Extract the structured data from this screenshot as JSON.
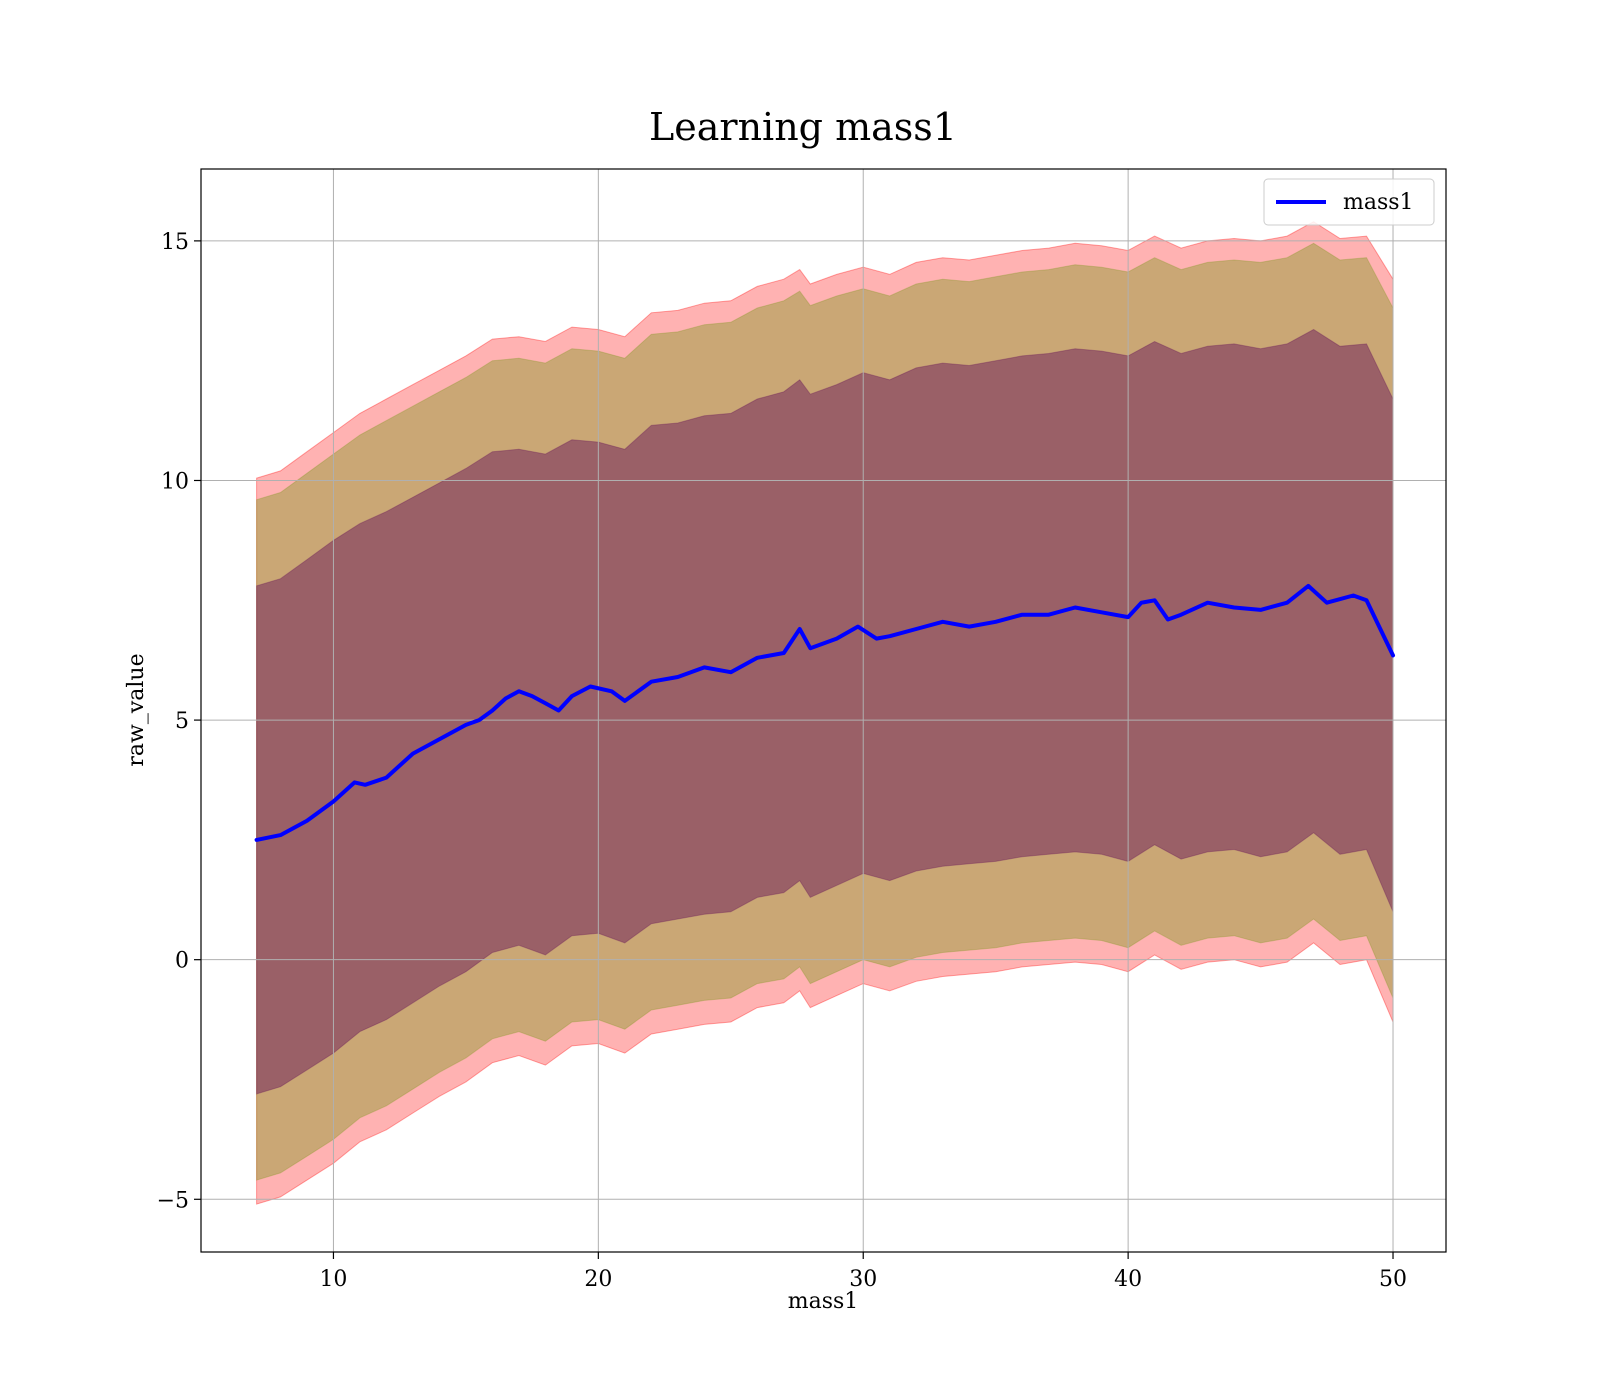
{
  "chart_data": {
    "type": "line",
    "title": "Learning mass1",
    "xlabel": "mass1",
    "ylabel": "raw_value",
    "xlim": [
      5,
      52
    ],
    "ylim": [
      -6.1,
      16.5
    ],
    "xticks": [
      10,
      20,
      30,
      40,
      50
    ],
    "yticks": [
      -5,
      0,
      5,
      10,
      15
    ],
    "grid": true,
    "legend_position": "upper right",
    "colors": {
      "line": "#0000ff",
      "band_outer": "#ff0000",
      "band_mid": "#8a9a2a",
      "band_inner": "#6a1a5a",
      "grid": "#b0b0b0"
    },
    "series": [
      {
        "name": "mass1",
        "x": [
          7.1,
          8,
          9,
          10,
          10.8,
          11.2,
          12,
          13,
          14,
          15,
          15.5,
          16,
          16.5,
          17,
          17.5,
          18,
          18.5,
          19,
          19.7,
          20.5,
          21,
          22,
          23,
          24,
          25,
          26,
          27,
          27.6,
          28,
          29,
          29.8,
          30.5,
          31,
          32,
          33,
          34,
          35,
          36,
          37,
          38,
          39,
          40,
          40.5,
          41,
          41.5,
          42,
          43,
          44,
          45,
          46,
          46.8,
          47.5,
          48.5,
          49,
          50
        ],
        "y": [
          2.5,
          2.6,
          2.9,
          3.3,
          3.7,
          3.65,
          3.8,
          4.3,
          4.6,
          4.9,
          5.0,
          5.2,
          5.45,
          5.6,
          5.5,
          5.35,
          5.2,
          5.5,
          5.7,
          5.6,
          5.4,
          5.8,
          5.9,
          6.1,
          6.0,
          6.3,
          6.4,
          6.9,
          6.5,
          6.7,
          6.95,
          6.7,
          6.75,
          6.9,
          7.05,
          6.95,
          7.05,
          7.2,
          7.2,
          7.35,
          7.25,
          7.15,
          7.45,
          7.5,
          7.1,
          7.2,
          7.45,
          7.35,
          7.3,
          7.45,
          7.8,
          7.45,
          7.6,
          7.5,
          6.35
        ]
      }
    ],
    "bands": [
      {
        "x": [
          7.1,
          8,
          9,
          10,
          11,
          12,
          13,
          14,
          15,
          16,
          17,
          18,
          19,
          20,
          21,
          22,
          23,
          24,
          25,
          26,
          27,
          27.6,
          28,
          29,
          30,
          31,
          32,
          33,
          34,
          35,
          36,
          37,
          38,
          39,
          40,
          41,
          42,
          43,
          44,
          45,
          46,
          47,
          48,
          49,
          50
        ],
        "upper": [
          10.05,
          10.2,
          10.6,
          11.0,
          11.4,
          11.7,
          12.0,
          12.3,
          12.6,
          12.95,
          13.0,
          12.9,
          13.2,
          13.15,
          13.0,
          13.5,
          13.55,
          13.7,
          13.75,
          14.05,
          14.2,
          14.4,
          14.1,
          14.3,
          14.45,
          14.3,
          14.55,
          14.65,
          14.6,
          14.7,
          14.8,
          14.85,
          14.95,
          14.9,
          14.8,
          15.1,
          14.85,
          15.0,
          15.05,
          15.0,
          15.1,
          15.4,
          15.05,
          15.1,
          14.2
        ],
        "lower": [
          -5.1,
          -4.95,
          -4.6,
          -4.25,
          -3.8,
          -3.55,
          -3.2,
          -2.85,
          -2.55,
          -2.15,
          -2.0,
          -2.2,
          -1.8,
          -1.75,
          -1.95,
          -1.55,
          -1.45,
          -1.35,
          -1.3,
          -1.0,
          -0.9,
          -0.65,
          -1.0,
          -0.75,
          -0.5,
          -0.65,
          -0.45,
          -0.35,
          -0.3,
          -0.25,
          -0.15,
          -0.1,
          -0.05,
          -0.1,
          -0.25,
          0.1,
          -0.2,
          -0.05,
          0.0,
          -0.15,
          -0.05,
          0.35,
          -0.1,
          0.0,
          -1.3
        ]
      },
      {
        "x": [
          7.1,
          8,
          9,
          10,
          11,
          12,
          13,
          14,
          15,
          16,
          17,
          18,
          19,
          20,
          21,
          22,
          23,
          24,
          25,
          26,
          27,
          27.6,
          28,
          29,
          30,
          31,
          32,
          33,
          34,
          35,
          36,
          37,
          38,
          39,
          40,
          41,
          42,
          43,
          44,
          45,
          46,
          47,
          48,
          49,
          50
        ],
        "upper": [
          9.6,
          9.75,
          10.15,
          10.55,
          10.95,
          11.25,
          11.55,
          11.85,
          12.15,
          12.5,
          12.55,
          12.45,
          12.75,
          12.7,
          12.55,
          13.05,
          13.1,
          13.25,
          13.3,
          13.6,
          13.75,
          13.95,
          13.65,
          13.85,
          14.0,
          13.85,
          14.1,
          14.2,
          14.15,
          14.25,
          14.35,
          14.4,
          14.5,
          14.45,
          14.35,
          14.65,
          14.4,
          14.55,
          14.6,
          14.55,
          14.65,
          14.95,
          14.6,
          14.65,
          13.6
        ],
        "lower": [
          -4.6,
          -4.45,
          -4.1,
          -3.75,
          -3.3,
          -3.05,
          -2.7,
          -2.35,
          -2.05,
          -1.65,
          -1.5,
          -1.7,
          -1.3,
          -1.25,
          -1.45,
          -1.05,
          -0.95,
          -0.85,
          -0.8,
          -0.5,
          -0.4,
          -0.15,
          -0.5,
          -0.25,
          0.0,
          -0.15,
          0.05,
          0.15,
          0.2,
          0.25,
          0.35,
          0.4,
          0.45,
          0.4,
          0.25,
          0.6,
          0.3,
          0.45,
          0.5,
          0.35,
          0.45,
          0.85,
          0.4,
          0.5,
          -0.8
        ]
      },
      {
        "x": [
          7.1,
          8,
          9,
          10,
          11,
          12,
          13,
          14,
          15,
          16,
          17,
          18,
          19,
          20,
          21,
          22,
          23,
          24,
          25,
          26,
          27,
          27.6,
          28,
          29,
          30,
          31,
          32,
          33,
          34,
          35,
          36,
          37,
          38,
          39,
          40,
          41,
          42,
          43,
          44,
          45,
          46,
          47,
          48,
          49,
          50
        ],
        "upper": [
          7.8,
          7.95,
          8.35,
          8.75,
          9.1,
          9.35,
          9.65,
          9.95,
          10.25,
          10.6,
          10.65,
          10.55,
          10.85,
          10.8,
          10.65,
          11.15,
          11.2,
          11.35,
          11.4,
          11.7,
          11.85,
          12.1,
          11.8,
          12.0,
          12.25,
          12.1,
          12.35,
          12.45,
          12.4,
          12.5,
          12.6,
          12.65,
          12.75,
          12.7,
          12.6,
          12.9,
          12.65,
          12.8,
          12.85,
          12.75,
          12.85,
          13.15,
          12.8,
          12.85,
          11.7
        ],
        "lower": [
          -2.8,
          -2.65,
          -2.3,
          -1.95,
          -1.5,
          -1.25,
          -0.9,
          -0.55,
          -0.25,
          0.15,
          0.3,
          0.1,
          0.5,
          0.55,
          0.35,
          0.75,
          0.85,
          0.95,
          1.0,
          1.3,
          1.4,
          1.65,
          1.3,
          1.55,
          1.8,
          1.65,
          1.85,
          1.95,
          2.0,
          2.05,
          2.15,
          2.2,
          2.25,
          2.2,
          2.05,
          2.4,
          2.1,
          2.25,
          2.3,
          2.15,
          2.25,
          2.65,
          2.2,
          2.3,
          1.0
        ]
      }
    ]
  }
}
